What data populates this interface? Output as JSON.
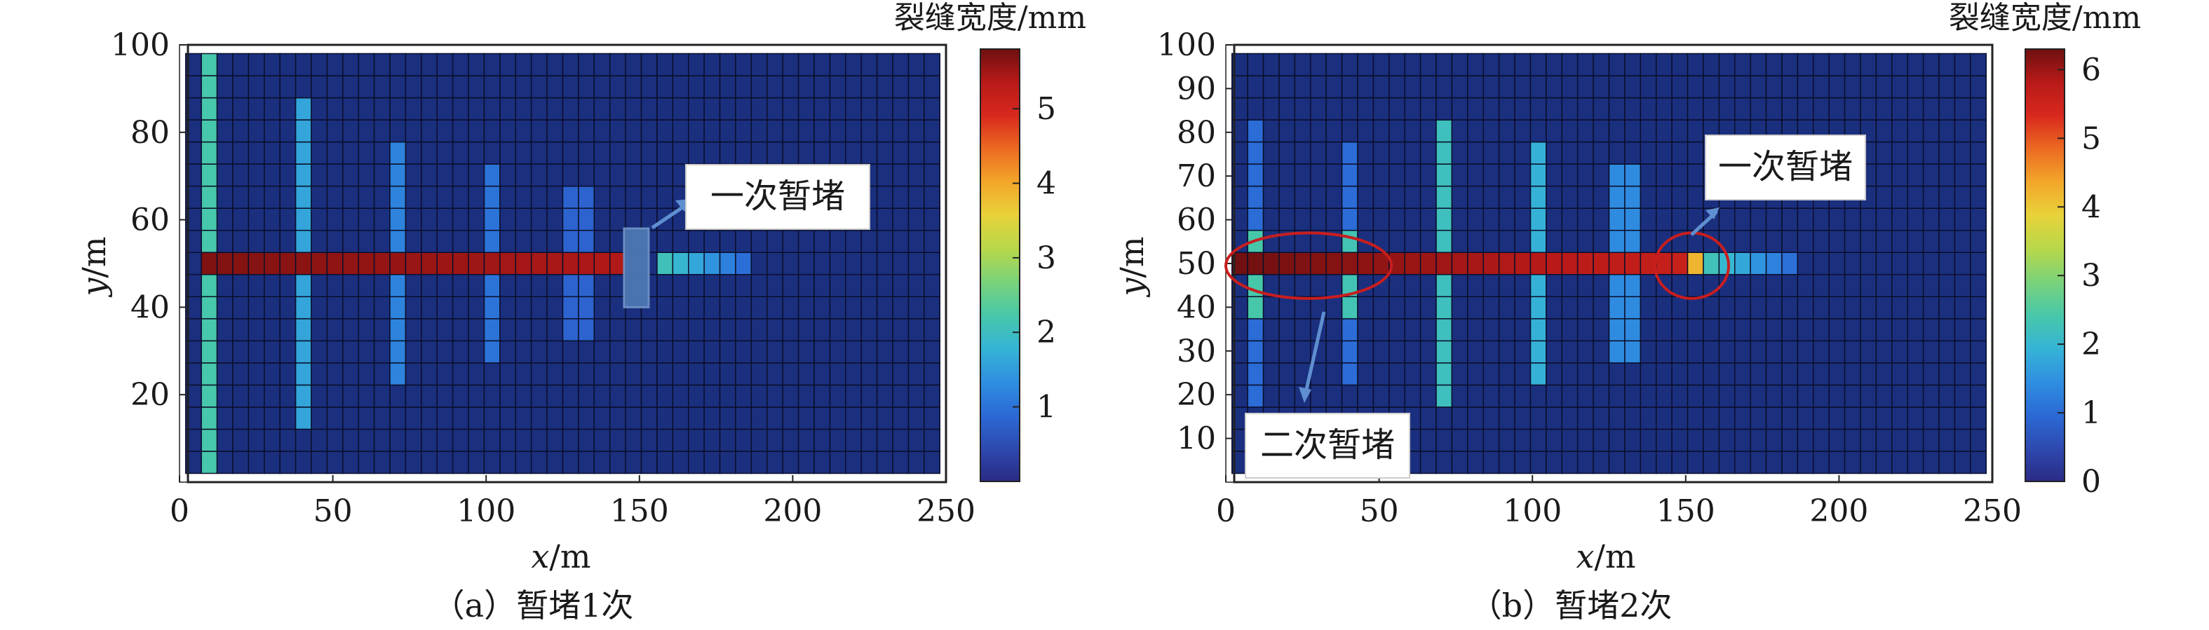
{
  "colors": {
    "background_cell": "#1b2f7f",
    "grid_line": "#0a0f2a",
    "annotation_arrow": "#5f8fd0",
    "circle_highlight": "#c81e1e",
    "plug_block": "#4d78b3"
  },
  "colorscale": [
    "#2b2a85",
    "#2e4ab0",
    "#2b6ad6",
    "#2f8fe0",
    "#35b4d6",
    "#48c8a8",
    "#7ad27a",
    "#b8d84a",
    "#e8d23a",
    "#f3a62a",
    "#ec6a22",
    "#d8281e",
    "#b81a18",
    "#6e1010"
  ],
  "chart_data": [
    {
      "type": "heatmap",
      "panel": "a",
      "caption": "（a）暂堵1次",
      "xlabel_var": "x",
      "xlabel_unit": "/m",
      "ylabel_var": "y",
      "ylabel_unit": "/m",
      "xlim": [
        0,
        250
      ],
      "ylim": [
        0,
        100
      ],
      "xticks": [
        "0",
        "50",
        "100",
        "150",
        "200",
        "250"
      ],
      "yticks": [
        "20",
        "40",
        "60",
        "80",
        "100"
      ],
      "colorbar": {
        "title": "裂缝宽度/mm",
        "range": [
          0,
          5.8
        ],
        "ticks": [
          "1",
          "2",
          "3",
          "4",
          "5"
        ]
      },
      "main_fracture": {
        "y": 50,
        "segments": [
          {
            "x_from": 5,
            "x_to": 145,
            "width_mm": [
              5.7,
              5.4
            ]
          },
          {
            "x_from": 155,
            "x_to": 185,
            "width_mm": [
              2.2,
              0.9
            ]
          }
        ]
      },
      "branch_fractures": [
        {
          "x": 10,
          "y_from": 2,
          "y_to": 98,
          "width_mm": 2.2
        },
        {
          "x": 40,
          "y_from": 12,
          "y_to": 87,
          "width_mm": 1.6
        },
        {
          "x": 70,
          "y_from": 22,
          "y_to": 77,
          "width_mm": 1.2
        },
        {
          "x": 100,
          "y_from": 27,
          "y_to": 72,
          "width_mm": 1.0
        },
        {
          "x": 130,
          "y_from": 32,
          "y_to": 67,
          "width_mm": 0.8
        }
      ],
      "plug": {
        "x_from": 145,
        "x_to": 153,
        "y_from": 40,
        "y_to": 58
      },
      "annotations": [
        "一次暂堵"
      ]
    },
    {
      "type": "heatmap",
      "panel": "b",
      "caption": "（b）暂堵2次",
      "xlabel_var": "x",
      "xlabel_unit": "/m",
      "ylabel_var": "y",
      "ylabel_unit": "/m",
      "xlim": [
        0,
        250
      ],
      "ylim": [
        0,
        100
      ],
      "xticks": [
        "0",
        "50",
        "100",
        "150",
        "200",
        "250"
      ],
      "yticks": [
        "10",
        "20",
        "30",
        "40",
        "50",
        "60",
        "70",
        "80",
        "90",
        "100"
      ],
      "colorbar": {
        "title": "裂缝宽度/mm",
        "range": [
          0,
          6.3
        ],
        "ticks": [
          "0",
          "1",
          "2",
          "3",
          "4",
          "5",
          "6"
        ]
      },
      "main_fracture": {
        "y": 50,
        "segments": [
          {
            "x_from": 2,
            "x_to": 150,
            "width_mm": [
              6.3,
              5.6
            ]
          },
          {
            "x_from": 150,
            "x_to": 155,
            "width_mm": [
              4.2,
              4.2
            ]
          },
          {
            "x_from": 155,
            "x_to": 185,
            "width_mm": [
              2.4,
              1.0
            ]
          }
        ]
      },
      "branch_fractures": [
        {
          "x": 10,
          "y_from": 17,
          "y_to": 82,
          "width_mm": 1.0,
          "mid_width_mm": 2.4,
          "mid_from": 37,
          "mid_to": 57
        },
        {
          "x": 40,
          "y_from": 22,
          "y_to": 77,
          "width_mm": 1.0,
          "mid_width_mm": 2.3,
          "mid_from": 37,
          "mid_to": 57
        },
        {
          "x": 70,
          "y_from": 17,
          "y_to": 82,
          "width_mm": 2.2
        },
        {
          "x": 100,
          "y_from": 22,
          "y_to": 77,
          "width_mm": 1.9
        },
        {
          "x": 130,
          "y_from": 27,
          "y_to": 72,
          "width_mm": 1.4
        }
      ],
      "circles": [
        {
          "cx": 27,
          "cy": 49.5,
          "rx": 27,
          "ry": 7.5
        },
        {
          "cx": 152,
          "cy": 49.5,
          "rx": 12,
          "ry": 7.5
        }
      ],
      "annotations": [
        "一次暂堵",
        "二次暂堵"
      ]
    }
  ]
}
